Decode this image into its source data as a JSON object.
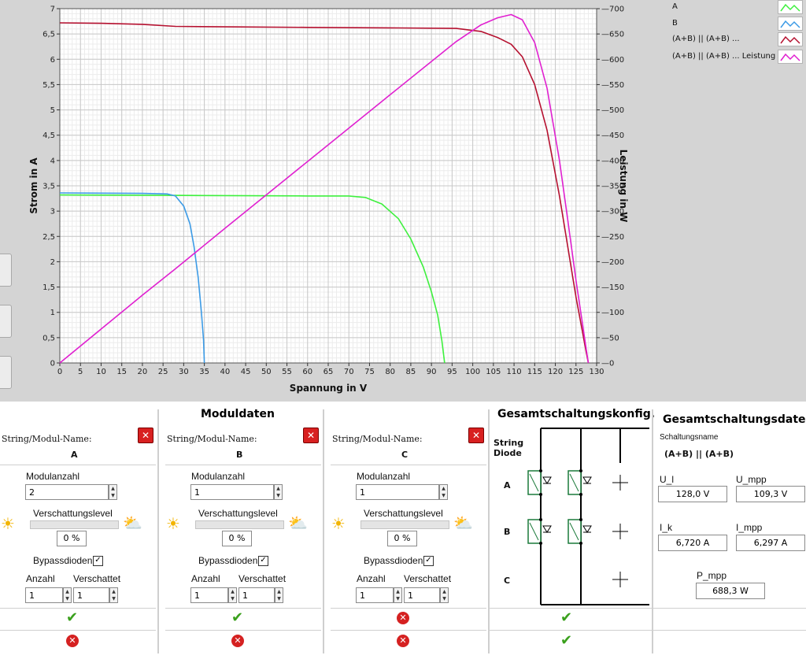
{
  "chart_data": {
    "type": "line",
    "xlabel": "Spannung in V",
    "ylabel": "Strom in A",
    "y2label": "Leistung in W",
    "xlim": [
      0,
      130
    ],
    "ylim": [
      0,
      7
    ],
    "y2lim": [
      0,
      700
    ],
    "x_ticks": [
      "0",
      "5",
      "10",
      "15",
      "20",
      "25",
      "30",
      "35",
      "40",
      "45",
      "50",
      "55",
      "60",
      "65",
      "70",
      "75",
      "80",
      "85",
      "90",
      "95",
      "100",
      "105",
      "110",
      "115",
      "120",
      "125",
      "130"
    ],
    "y_ticks": [
      "0",
      "0,5",
      "1",
      "1,5",
      "2",
      "2,5",
      "3",
      "3,5",
      "4",
      "4,5",
      "5",
      "5,5",
      "6",
      "6,5",
      "7"
    ],
    "y2_ticks": [
      "0",
      "50",
      "100",
      "150",
      "200",
      "250",
      "300",
      "350",
      "400",
      "450",
      "500",
      "550",
      "600",
      "650",
      "700"
    ],
    "grid": true,
    "legend_position": "top-right",
    "series": [
      {
        "name": "A",
        "axis": "left",
        "color": "#3ef03e",
        "x": [
          0,
          30,
          60,
          70,
          74,
          78,
          82,
          85,
          88,
          90,
          91.5,
          92.5,
          93.2
        ],
        "y": [
          3.32,
          3.31,
          3.3,
          3.3,
          3.27,
          3.14,
          2.85,
          2.45,
          1.9,
          1.4,
          0.95,
          0.45,
          0.0
        ]
      },
      {
        "name": "B",
        "axis": "left",
        "color": "#3c9be6",
        "x": [
          0,
          20,
          26,
          28,
          30,
          31.5,
          32.5,
          33.5,
          34.3,
          34.8,
          35.0
        ],
        "y": [
          3.36,
          3.35,
          3.34,
          3.3,
          3.1,
          2.75,
          2.3,
          1.7,
          1.0,
          0.45,
          0.0
        ]
      },
      {
        "name": "(A+B) || (A+B) ...",
        "axis": "left",
        "color": "#b5102f",
        "x": [
          0,
          10,
          20,
          28,
          40,
          60,
          80,
          96,
          102,
          106,
          109.3,
          112,
          115,
          118,
          121,
          123,
          125,
          126.5,
          127.5,
          128.0
        ],
        "y": [
          6.72,
          6.71,
          6.69,
          6.65,
          6.64,
          6.63,
          6.62,
          6.61,
          6.55,
          6.43,
          6.297,
          6.05,
          5.5,
          4.6,
          3.3,
          2.3,
          1.3,
          0.65,
          0.2,
          0.0
        ]
      },
      {
        "name": "(A+B) || (A+B) ... Leistung",
        "axis": "right",
        "color": "#e020d0",
        "x": [
          0,
          10,
          20,
          28,
          40,
          60,
          80,
          96,
          102,
          106,
          109.3,
          112,
          115,
          118,
          121,
          123,
          125,
          126.5,
          127.5,
          128.0
        ],
        "y": [
          0,
          67,
          134,
          186,
          266,
          398,
          530,
          635,
          668,
          682,
          688.3,
          678,
          633,
          543,
          400,
          283,
          163,
          82,
          26,
          0
        ]
      }
    ]
  },
  "legend": [
    {
      "label": "A"
    },
    {
      "label": "B"
    },
    {
      "label": "(A+B) || (A+B) ..."
    },
    {
      "label": "(A+B) || (A+B) ... Leistung"
    }
  ],
  "moduldaten": {
    "title": "Moduldaten",
    "name_label": "String/Modul-Name:",
    "modulanzahl_label": "Modulanzahl",
    "verschattung_label": "Verschattungslevel",
    "bypass_label": "Bypassdioden",
    "anzahl_label": "Anzahl",
    "verschattet_label": "Verschattet",
    "close_glyph": "✕",
    "modules": [
      {
        "name": "A",
        "modulanzahl": "2",
        "verschattung": "0 %",
        "verschattung_level": 0,
        "bypass": "✓",
        "anzahl": "1",
        "verschattet": "1",
        "status1": "ok",
        "status2": "error"
      },
      {
        "name": "B",
        "modulanzahl": "1",
        "verschattung": "0 %",
        "verschattung_level": 0,
        "bypass": "✓",
        "anzahl": "1",
        "verschattet": "1",
        "status1": "ok",
        "status2": "error"
      },
      {
        "name": "C",
        "modulanzahl": "1",
        "verschattung": "0 %",
        "verschattung_level": 0,
        "bypass": "✓",
        "anzahl": "1",
        "verschattet": "1",
        "status1": "error",
        "status2": "error"
      }
    ]
  },
  "konfig": {
    "title": "Gesamtschaltungskonfig.",
    "string_label": "String",
    "diode_label": "Diode",
    "rows": [
      "A",
      "B",
      "C"
    ]
  },
  "gesamtdaten": {
    "title": "Gesamtschaltungsdaten",
    "schaltungsname_label": "Schaltungsname",
    "schaltungsname": "(A+B) || (A+B)",
    "u_l_label": "U_l",
    "u_l": "128,0 V",
    "u_mpp_label": "U_mpp",
    "u_mpp": "109,3 V",
    "i_k_label": "I_k",
    "i_k": "6,720 A",
    "i_mpp_label": "I_mpp",
    "i_mpp": "6,297 A",
    "p_mpp_label": "P_mpp",
    "p_mpp": "688,3 W"
  },
  "status_glyphs": {
    "ok": "✔",
    "error": "✕"
  },
  "colors": {
    "accent_panel": "#d4d4d4",
    "grid": "#cfcfcf",
    "minor_grid": "#ececec"
  }
}
